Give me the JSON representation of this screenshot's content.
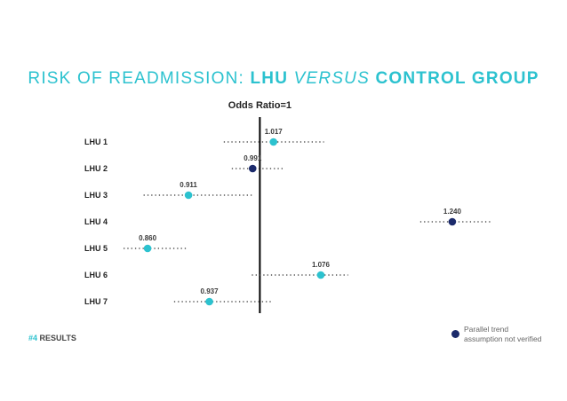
{
  "title": {
    "part1": "RISK OF READMISSION: ",
    "part2": "LHU ",
    "part3": "VERSUS",
    "part4": " CONTROL GROUP"
  },
  "colors": {
    "teal": "#2cc2cf",
    "navy": "#1b2a6b",
    "dots": "#333333",
    "axis": "#000000"
  },
  "chart_data": {
    "type": "forest",
    "title": "RISK OF READMISSION: LHU VERSUS CONTROL GROUP",
    "reference_label": "Odds Ratio=1",
    "reference_value": 1.0,
    "xlim": [
      0.82,
      1.28
    ],
    "series": [
      {
        "label": "LHU 1",
        "or": 1.017,
        "ci": [
          0.955,
          1.08
        ],
        "parallel_trend_not_verified": false,
        "or_text": "1.017"
      },
      {
        "label": "LHU 2",
        "or": 0.991,
        "ci": [
          0.965,
          1.03
        ],
        "parallel_trend_not_verified": true,
        "or_text": "0.991"
      },
      {
        "label": "LHU 3",
        "or": 0.911,
        "ci": [
          0.855,
          0.993
        ],
        "parallel_trend_not_verified": false,
        "or_text": "0.911"
      },
      {
        "label": "LHU 4",
        "or": 1.24,
        "ci": [
          1.2,
          1.29
        ],
        "parallel_trend_not_verified": true,
        "or_text": "1.240"
      },
      {
        "label": "LHU 5",
        "or": 0.86,
        "ci": [
          0.83,
          0.908
        ],
        "parallel_trend_not_verified": false,
        "or_text": "0.860"
      },
      {
        "label": "LHU 6",
        "or": 1.076,
        "ci": [
          0.99,
          1.11
        ],
        "parallel_trend_not_verified": false,
        "or_text": "1.076"
      },
      {
        "label": "LHU 7",
        "or": 0.937,
        "ci": [
          0.893,
          1.015
        ],
        "parallel_trend_not_verified": false,
        "or_text": "0.937"
      }
    ]
  },
  "footer": {
    "number": "#4",
    "label": " RESULTS"
  },
  "legend": {
    "line1": "Parallel trend",
    "line2": "assumption not verified"
  }
}
